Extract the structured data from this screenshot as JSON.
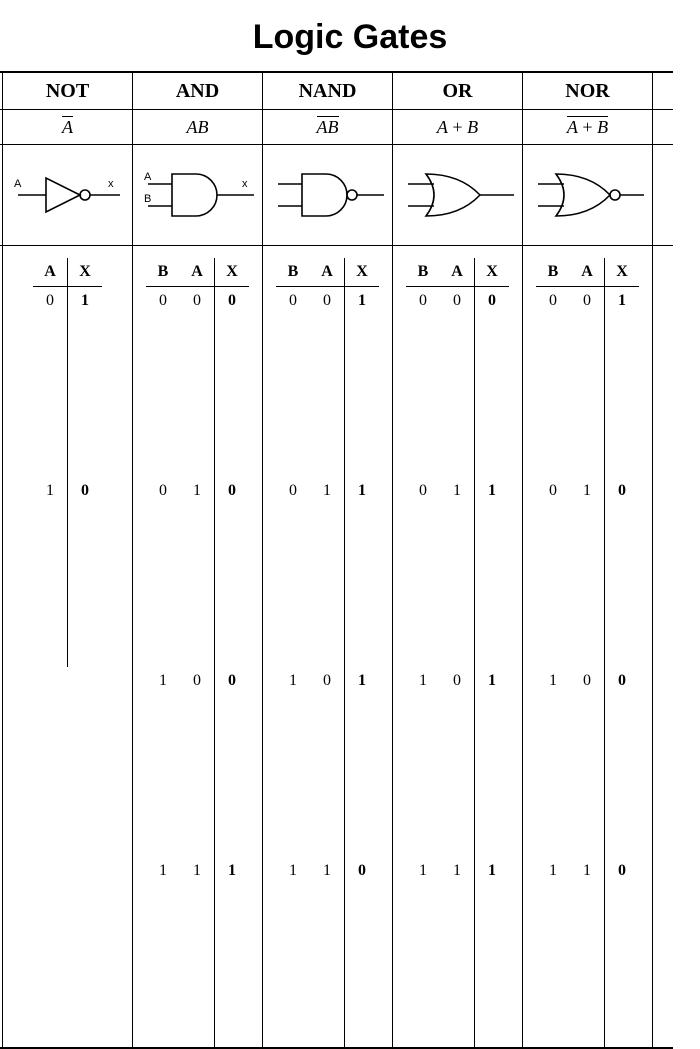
{
  "title": "Logic Gates",
  "colors": {
    "stroke": "#000000",
    "background": "#ffffff"
  },
  "gates": [
    {
      "name": "NOT",
      "expr_parts": [
        "A"
      ],
      "overbar": true,
      "symbol": "not",
      "pin_labels": {
        "a": "A",
        "x": "x"
      },
      "truth": {
        "headers": [
          "A",
          "X"
        ],
        "rows": [
          [
            "0",
            "1"
          ],
          [
            "1",
            "0"
          ]
        ]
      }
    },
    {
      "name": "AND",
      "expr_parts": [
        "AB"
      ],
      "overbar": false,
      "symbol": "and",
      "pin_labels": {
        "a": "A",
        "b": "B",
        "x": "x"
      },
      "truth": {
        "headers": [
          "B",
          "A",
          "X"
        ],
        "rows": [
          [
            "0",
            "0",
            "0"
          ],
          [
            "0",
            "1",
            "0"
          ],
          [
            "1",
            "0",
            "0"
          ],
          [
            "1",
            "1",
            "1"
          ]
        ]
      }
    },
    {
      "name": "NAND",
      "expr_parts": [
        "AB"
      ],
      "overbar": true,
      "symbol": "nand",
      "truth": {
        "headers": [
          "B",
          "A",
          "X"
        ],
        "rows": [
          [
            "0",
            "0",
            "1"
          ],
          [
            "0",
            "1",
            "1"
          ],
          [
            "1",
            "0",
            "1"
          ],
          [
            "1",
            "1",
            "0"
          ]
        ]
      }
    },
    {
      "name": "OR",
      "expr_parts": [
        "A",
        " + ",
        "B"
      ],
      "overbar": false,
      "symbol": "or",
      "truth": {
        "headers": [
          "B",
          "A",
          "X"
        ],
        "rows": [
          [
            "0",
            "0",
            "0"
          ],
          [
            "0",
            "1",
            "1"
          ],
          [
            "1",
            "0",
            "1"
          ],
          [
            "1",
            "1",
            "1"
          ]
        ]
      }
    },
    {
      "name": "NOR",
      "expr_parts": [
        "A",
        " + ",
        "B"
      ],
      "overbar": true,
      "symbol": "nor",
      "truth": {
        "headers": [
          "B",
          "A",
          "X"
        ],
        "rows": [
          [
            "0",
            "0",
            "1"
          ],
          [
            "0",
            "1",
            "0"
          ],
          [
            "1",
            "0",
            "0"
          ],
          [
            "1",
            "1",
            "0"
          ]
        ]
      }
    }
  ],
  "svg": {
    "line_width": 1.6
  }
}
